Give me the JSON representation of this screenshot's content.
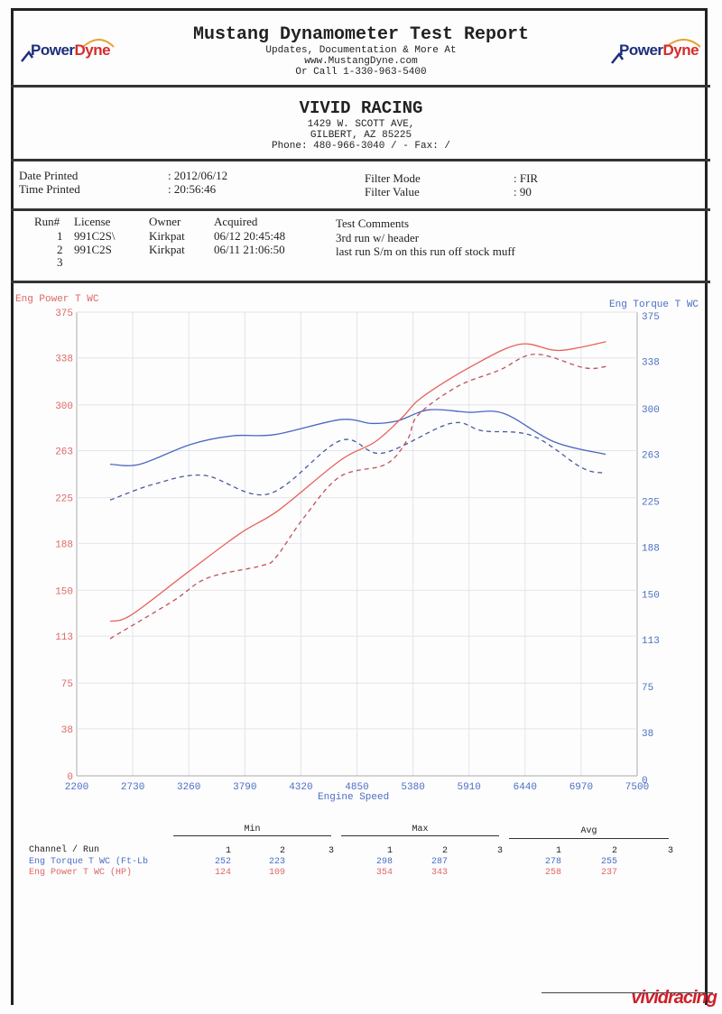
{
  "header": {
    "title": "Mustang Dynamometer Test Report",
    "line1": "Updates, Documentation & More At",
    "line2": "www.MustangDyne.com",
    "line3": "Or Call 1-330-963-5400",
    "logo_left": "PowerDyne",
    "logo_right": "PowerDyne"
  },
  "shop": {
    "name": "VIVID RACING",
    "address1": "1429 W. SCOTT AVE,",
    "address2": "GILBERT, AZ  85225",
    "phone": "Phone: 480-966-3040 /  - Fax:  /"
  },
  "info": {
    "date_label": "Date Printed",
    "date_value": ": 2012/06/12",
    "time_label": "Time Printed",
    "time_value": ": 20:56:46",
    "filter_mode_label": "Filter Mode",
    "filter_mode_value": ": FIR",
    "filter_value_label": "Filter Value",
    "filter_value_value": ": 90"
  },
  "runs": {
    "headers": [
      "Run#",
      "License",
      "Owner",
      "Acquired",
      "Test Comments"
    ],
    "rows": [
      {
        "run": "1",
        "license": "991C2S\\",
        "owner": "Kirkpat",
        "acquired": "06/12 20:45:48",
        "comment": "3rd run w/ header"
      },
      {
        "run": "2",
        "license": "991C2S",
        "owner": "Kirkpat",
        "acquired": "06/11 21:06:50",
        "comment": "last run S/m on this run off stock muff"
      },
      {
        "run": "3",
        "license": "",
        "owner": "",
        "acquired": "",
        "comment": ""
      }
    ]
  },
  "chart_data": {
    "type": "line",
    "title": "",
    "xlabel": "Engine Speed",
    "ylabel_left": "Eng Power T WC",
    "ylabel_right": "Eng Torque T WC",
    "xlim": [
      2200,
      7500
    ],
    "ylim_left": [
      0,
      375
    ],
    "ylim_right": [
      0,
      375
    ],
    "x_ticks": [
      "2200",
      "2730",
      "3260",
      "3790",
      "4320",
      "4850",
      "5380",
      "5910",
      "6440",
      "6970",
      "7500"
    ],
    "y_ticks_left": [
      "0",
      "38",
      "75",
      "113",
      "150",
      "188",
      "225",
      "263",
      "300",
      "338",
      "375"
    ],
    "y_ticks_right": [
      "0",
      "38",
      "75",
      "113",
      "150",
      "188",
      "225",
      "263",
      "300",
      "338",
      "375"
    ],
    "grid": true,
    "colors": {
      "power": "#e8605a",
      "torque": "#4a66c0",
      "torque_run2": "#4a5a9a",
      "power_run2": "#c0505a"
    },
    "series": [
      {
        "name": "Eng Torque T WC Run 1",
        "axis": "right",
        "style": "solid",
        "color": "#4a66c0",
        "x": [
          2516,
          2797,
          3275,
          3676,
          4077,
          4690,
          4990,
          5231,
          5530,
          5905,
          6240,
          6717,
          7202
        ],
        "y": [
          252,
          252,
          268,
          275,
          276,
          288,
          285,
          287,
          296,
          294,
          293,
          270,
          260
        ]
      },
      {
        "name": "Eng Torque T WC Run 2",
        "axis": "right",
        "style": "dashed",
        "color": "#4a5a9a",
        "x": [
          2516,
          2935,
          3404,
          4015,
          4690,
          5090,
          5733,
          6040,
          6510,
          6980,
          7202
        ],
        "y": [
          223,
          236,
          243,
          228,
          271,
          261,
          285,
          279,
          275,
          249,
          245
        ]
      },
      {
        "name": "Eng Power T WC Run 1",
        "axis": "left",
        "style": "solid",
        "color": "#e8605a",
        "x": [
          2516,
          2714,
          3240,
          3745,
          4113,
          4690,
          5021,
          5280,
          5463,
          5930,
          6390,
          6760,
          7205
        ],
        "y": [
          125,
          130,
          164,
          196,
          215,
          255,
          270,
          290,
          306,
          331,
          349,
          344,
          351
        ]
      },
      {
        "name": "Eng Power T WC Run 2",
        "axis": "left",
        "style": "dashed",
        "color": "#c0505a",
        "x": [
          2516,
          3105,
          3437,
          3950,
          4086,
          4350,
          4690,
          5124,
          5328,
          5430,
          5803,
          6195,
          6535,
          6997,
          7205
        ],
        "y": [
          111,
          141,
          160,
          170,
          177,
          209,
          242,
          252,
          272,
          292,
          315,
          328,
          341,
          330,
          331
        ]
      }
    ]
  },
  "stats": {
    "groups": [
      "Min",
      "Max",
      "Avg"
    ],
    "channel_header": "Channel / Run",
    "run_labels": [
      "1",
      "2",
      "3"
    ],
    "rows": [
      {
        "channel": "Eng Torque T WC (Ft-Lb",
        "color": "blue",
        "min": [
          "252",
          "223"
        ],
        "max": [
          "298",
          "287"
        ],
        "avg": [
          "278",
          "255"
        ]
      },
      {
        "channel": "Eng Power T WC (HP)",
        "color": "red",
        "min": [
          "124",
          "109"
        ],
        "max": [
          "354",
          "343"
        ],
        "avg": [
          "258",
          "237"
        ]
      }
    ]
  },
  "footer": {
    "watermark": "vividracing"
  }
}
